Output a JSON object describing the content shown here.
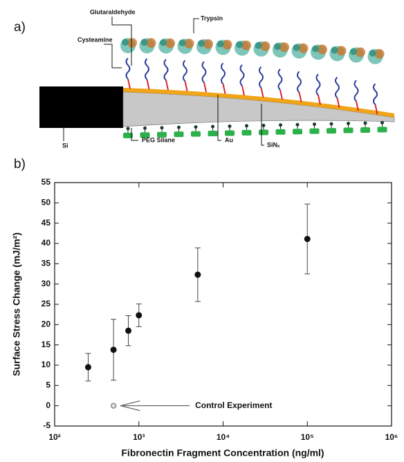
{
  "panel_labels": [
    "a)",
    "b)"
  ],
  "diagram": {
    "labels": [
      "Glutaraldehyde",
      "Trypsin",
      "Cysteamine",
      "Si",
      "PEG Silane",
      "Au",
      "SiNₓ"
    ]
  },
  "chart_data": {
    "type": "scatter",
    "x_label": "Fibronectin Fragment  Concentration (ng/ml)",
    "y_label": "Surface Stress Change (mJ/m²)",
    "x_log": true,
    "xlim": [
      100,
      1000000
    ],
    "xticks": [
      {
        "value": 100,
        "label": "10²"
      },
      {
        "value": 1000,
        "label": "10³"
      },
      {
        "value": 10000,
        "label": "10⁴"
      },
      {
        "value": 100000,
        "label": "10⁵"
      },
      {
        "value": 1000000,
        "label": "10⁶"
      }
    ],
    "ylim": [
      -5,
      55
    ],
    "yticks": [
      -5,
      0,
      5,
      10,
      15,
      20,
      25,
      30,
      35,
      40,
      45,
      50,
      55
    ],
    "series": [
      {
        "color": "#111111",
        "marker": "filled",
        "x": [
          250,
          500,
          750,
          1000,
          5000,
          100000
        ],
        "values": [
          9.5,
          13.8,
          18.5,
          22.3,
          32.3,
          41.1
        ],
        "errors": [
          3.4,
          7.5,
          3.7,
          2.8,
          6.6,
          8.6
        ]
      },
      {
        "color": "#777777",
        "marker": "open",
        "x": [
          500
        ],
        "values": [
          0
        ]
      }
    ],
    "annotation": "Control Experiment"
  }
}
